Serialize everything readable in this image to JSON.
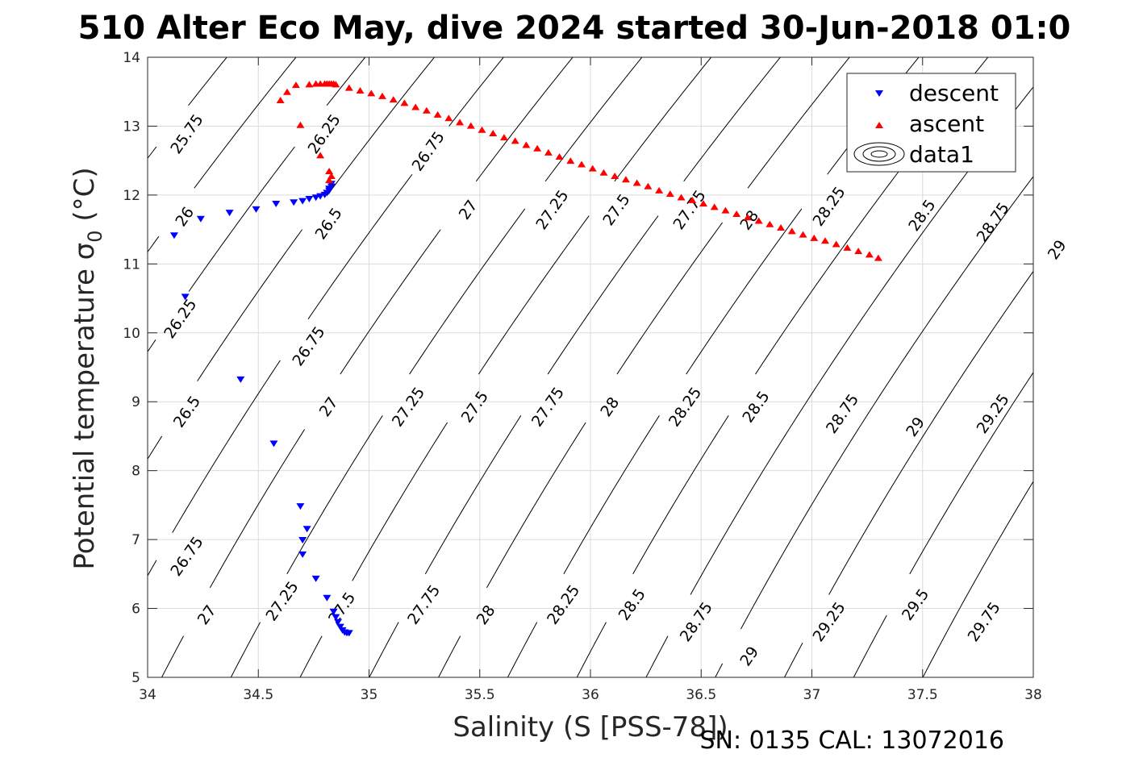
{
  "chart_data": {
    "type": "scatter",
    "title": "510 Alter Eco May, dive 2024 started 30-Jun-2018 01:0",
    "xlabel": "Salinity (S [PSS-78])",
    "ylabel": "Potential temperature σ",
    "ylabel_subscript": "0",
    "ylabel_unit": " (°C)",
    "footer": "SN: 0135  CAL: 13072016",
    "xlim": [
      34,
      38
    ],
    "ylim": [
      5,
      14
    ],
    "grid": true,
    "x_ticks": [
      "34",
      "34.5",
      "35",
      "35.5",
      "36",
      "36.5",
      "37",
      "37.5",
      "38"
    ],
    "y_ticks": [
      "5",
      "6",
      "7",
      "8",
      "9",
      "10",
      "11",
      "12",
      "13",
      "14"
    ],
    "legend": {
      "position": "top-right",
      "entries": [
        {
          "label": "descent",
          "marker": "triangle-down",
          "color": "#0000ff"
        },
        {
          "label": "ascent",
          "marker": "triangle-up",
          "color": "#ff0000"
        },
        {
          "label": "data1",
          "marker": "contour",
          "color": "#000000"
        }
      ]
    },
    "contours": {
      "levels": [
        25.75,
        26,
        26.25,
        26.5,
        26.75,
        27,
        27.25,
        27.5,
        27.75,
        28,
        28.25,
        28.5,
        28.75,
        29,
        29.25,
        29.5,
        29.75
      ],
      "line_color": "#000000",
      "labels": [
        {
          "text": "25.75",
          "s": 34.18,
          "t": 12.88
        },
        {
          "text": "26.25",
          "s": 34.8,
          "t": 12.88
        },
        {
          "text": "26",
          "s": 34.17,
          "t": 11.68
        },
        {
          "text": "26.5",
          "s": 34.82,
          "t": 11.58
        },
        {
          "text": "26.75",
          "s": 35.27,
          "t": 12.63
        },
        {
          "text": "27",
          "s": 35.45,
          "t": 11.78
        },
        {
          "text": "27.25",
          "s": 35.83,
          "t": 11.78
        },
        {
          "text": "27.5",
          "s": 36.12,
          "t": 11.78
        },
        {
          "text": "27.75",
          "s": 36.45,
          "t": 11.78
        },
        {
          "text": "28",
          "s": 36.72,
          "t": 11.63
        },
        {
          "text": "28.25",
          "s": 37.08,
          "t": 11.83
        },
        {
          "text": "28.5",
          "s": 37.5,
          "t": 11.7
        },
        {
          "text": "28.75",
          "s": 37.82,
          "t": 11.6
        },
        {
          "text": "29",
          "s": 38.11,
          "t": 11.2
        },
        {
          "text": "26.25",
          "s": 34.15,
          "t": 10.2
        },
        {
          "text": "26.75",
          "s": 34.73,
          "t": 9.8
        },
        {
          "text": "26.5",
          "s": 34.18,
          "t": 8.85
        },
        {
          "text": "27",
          "s": 34.82,
          "t": 8.92
        },
        {
          "text": "27.25",
          "s": 35.18,
          "t": 8.92
        },
        {
          "text": "27.5",
          "s": 35.48,
          "t": 8.92
        },
        {
          "text": "27.75",
          "s": 35.81,
          "t": 8.92
        },
        {
          "text": "28",
          "s": 36.09,
          "t": 8.92
        },
        {
          "text": "28.25",
          "s": 36.43,
          "t": 8.92
        },
        {
          "text": "28.5",
          "s": 36.75,
          "t": 8.92
        },
        {
          "text": "28.75",
          "s": 37.14,
          "t": 8.82
        },
        {
          "text": "29",
          "s": 37.47,
          "t": 8.63
        },
        {
          "text": "29.25",
          "s": 37.82,
          "t": 8.82
        },
        {
          "text": "26.75",
          "s": 34.18,
          "t": 6.75
        },
        {
          "text": "27",
          "s": 34.27,
          "t": 5.9
        },
        {
          "text": "27.25",
          "s": 34.61,
          "t": 6.1
        },
        {
          "text": "27.5",
          "s": 34.88,
          "t": 6.0
        },
        {
          "text": "27.75",
          "s": 35.25,
          "t": 6.05
        },
        {
          "text": "28",
          "s": 35.53,
          "t": 5.9
        },
        {
          "text": "28.25",
          "s": 35.88,
          "t": 6.05
        },
        {
          "text": "28.5",
          "s": 36.19,
          "t": 6.05
        },
        {
          "text": "28.75",
          "s": 36.48,
          "t": 5.8
        },
        {
          "text": "29",
          "s": 36.72,
          "t": 5.3
        },
        {
          "text": "29.25",
          "s": 37.08,
          "t": 5.8
        },
        {
          "text": "29.5",
          "s": 37.47,
          "t": 6.05
        },
        {
          "text": "29.75",
          "s": 37.78,
          "t": 5.8
        }
      ]
    },
    "series": [
      {
        "name": "descent",
        "marker": "triangle-down",
        "color": "#0000ff",
        "points": [
          [
            34.12,
            11.41
          ],
          [
            34.17,
            10.52
          ],
          [
            34.24,
            11.65
          ],
          [
            34.37,
            11.74
          ],
          [
            34.49,
            11.79
          ],
          [
            34.58,
            11.87
          ],
          [
            34.66,
            11.89
          ],
          [
            34.7,
            11.91
          ],
          [
            34.73,
            11.94
          ],
          [
            34.76,
            11.96
          ],
          [
            34.78,
            11.98
          ],
          [
            34.8,
            12.0
          ],
          [
            34.81,
            12.03
          ],
          [
            34.82,
            12.06
          ],
          [
            34.82,
            12.09
          ],
          [
            34.83,
            12.12
          ],
          [
            34.83,
            12.16
          ],
          [
            34.42,
            9.32
          ],
          [
            34.57,
            8.39
          ],
          [
            34.69,
            7.48
          ],
          [
            34.72,
            7.15
          ],
          [
            34.7,
            6.99
          ],
          [
            34.7,
            6.78
          ],
          [
            34.76,
            6.43
          ],
          [
            34.81,
            6.15
          ],
          [
            34.84,
            5.95
          ],
          [
            34.85,
            5.87
          ],
          [
            34.86,
            5.8
          ],
          [
            34.87,
            5.73
          ],
          [
            34.88,
            5.68
          ],
          [
            34.89,
            5.65
          ],
          [
            34.9,
            5.64
          ],
          [
            34.91,
            5.64
          ]
        ]
      },
      {
        "name": "ascent",
        "marker": "triangle-up",
        "color": "#ff0000",
        "points": [
          [
            34.82,
            12.22
          ],
          [
            34.83,
            12.28
          ],
          [
            34.82,
            12.35
          ],
          [
            34.78,
            12.58
          ],
          [
            34.69,
            13.02
          ],
          [
            34.6,
            13.38
          ],
          [
            34.63,
            13.5
          ],
          [
            34.67,
            13.6
          ],
          [
            34.73,
            13.61
          ],
          [
            34.76,
            13.62
          ],
          [
            34.78,
            13.62
          ],
          [
            34.8,
            13.62
          ],
          [
            34.81,
            13.62
          ],
          [
            34.82,
            13.62
          ],
          [
            34.83,
            13.62
          ],
          [
            34.84,
            13.62
          ],
          [
            34.85,
            13.61
          ],
          [
            34.91,
            13.56
          ],
          [
            34.96,
            13.52
          ],
          [
            35.01,
            13.48
          ],
          [
            35.06,
            13.44
          ],
          [
            35.11,
            13.39
          ],
          [
            35.16,
            13.34
          ],
          [
            35.21,
            13.28
          ],
          [
            35.26,
            13.23
          ],
          [
            35.31,
            13.17
          ],
          [
            35.36,
            13.12
          ],
          [
            35.41,
            13.06
          ],
          [
            35.46,
            13.01
          ],
          [
            35.51,
            12.95
          ],
          [
            35.56,
            12.9
          ],
          [
            35.61,
            12.84
          ],
          [
            35.66,
            12.79
          ],
          [
            35.71,
            12.73
          ],
          [
            35.76,
            12.68
          ],
          [
            35.81,
            12.62
          ],
          [
            35.86,
            12.56
          ],
          [
            35.91,
            12.5
          ],
          [
            35.96,
            12.45
          ],
          [
            36.01,
            12.39
          ],
          [
            36.06,
            12.33
          ],
          [
            36.11,
            12.28
          ],
          [
            36.16,
            12.23
          ],
          [
            36.21,
            12.18
          ],
          [
            36.26,
            12.13
          ],
          [
            36.31,
            12.07
          ],
          [
            36.36,
            12.02
          ],
          [
            36.41,
            11.97
          ],
          [
            36.46,
            11.93
          ],
          [
            36.51,
            11.88
          ],
          [
            36.56,
            11.83
          ],
          [
            36.61,
            11.78
          ],
          [
            36.66,
            11.73
          ],
          [
            36.71,
            11.68
          ],
          [
            36.76,
            11.63
          ],
          [
            36.81,
            11.58
          ],
          [
            36.86,
            11.53
          ],
          [
            36.91,
            11.48
          ],
          [
            36.96,
            11.43
          ],
          [
            37.01,
            11.38
          ],
          [
            37.06,
            11.34
          ],
          [
            37.11,
            11.29
          ],
          [
            37.16,
            11.24
          ],
          [
            37.21,
            11.19
          ],
          [
            37.26,
            11.14
          ],
          [
            37.3,
            11.09
          ]
        ]
      }
    ]
  }
}
